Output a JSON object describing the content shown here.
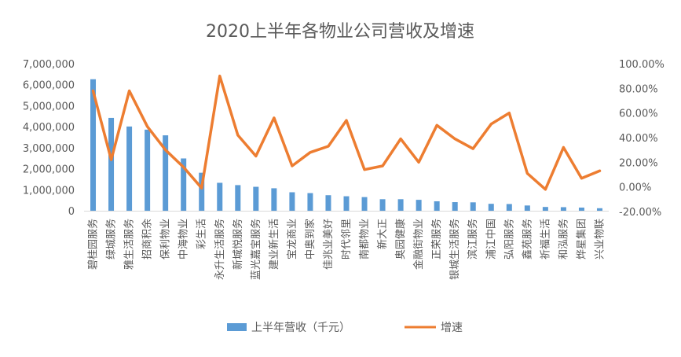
{
  "chart_data": {
    "type": "bar",
    "title": "2020上半年各物业公司营收及增速",
    "categories": [
      "碧桂园服务",
      "绿城服务",
      "雅生活服务",
      "招商积余",
      "保利物业",
      "中海物业",
      "彩生活",
      "永升生活服务",
      "新城悦服务",
      "蓝光嘉宝服务",
      "建业新生活",
      "宝龙商业",
      "中奥到家",
      "佳兆业美好",
      "时代邻里",
      "南都物业",
      "新大正",
      "奥园健康",
      "金融街物业",
      "正荣服务",
      "银城生活服务",
      "滨江服务",
      "浦江中国",
      "弘阳服务",
      "鑫苑服务",
      "祈福生活",
      "和泓服务",
      "烨星集团",
      "兴业物联"
    ],
    "series": [
      {
        "name": "上半年营收（千元）",
        "type": "bar",
        "axis": "left",
        "color": "#5B9BD5",
        "values": [
          6260000,
          4420000,
          4010000,
          3860000,
          3590000,
          2490000,
          1810000,
          1330000,
          1220000,
          1140000,
          1070000,
          880000,
          840000,
          740000,
          690000,
          650000,
          550000,
          550000,
          520000,
          450000,
          410000,
          400000,
          330000,
          320000,
          250000,
          180000,
          170000,
          150000,
          120000
        ]
      },
      {
        "name": "增速",
        "type": "line",
        "axis": "right",
        "color": "#ED7D31",
        "values": [
          0.78,
          0.22,
          0.78,
          0.49,
          0.3,
          0.16,
          -0.01,
          0.9,
          0.42,
          0.25,
          0.56,
          0.17,
          0.28,
          0.33,
          0.54,
          0.14,
          0.17,
          0.39,
          0.2,
          0.5,
          0.39,
          0.31,
          0.51,
          0.6,
          0.11,
          -0.02,
          0.32,
          0.07,
          0.13
        ]
      }
    ],
    "y_left": {
      "min": 0,
      "max": 7000000,
      "ticks": [
        "0",
        "1,000,000",
        "2,000,000",
        "3,000,000",
        "4,000,000",
        "5,000,000",
        "6,000,000",
        "7,000,000"
      ]
    },
    "y_right": {
      "min": -0.2,
      "max": 1.0,
      "ticks": [
        "-20.00%",
        "0.00%",
        "20.00%",
        "40.00%",
        "60.00%",
        "80.00%",
        "100.00%"
      ]
    },
    "legend": {
      "position": "bottom",
      "items": [
        "上半年营收（千元）",
        "增速"
      ]
    },
    "grid": false
  }
}
